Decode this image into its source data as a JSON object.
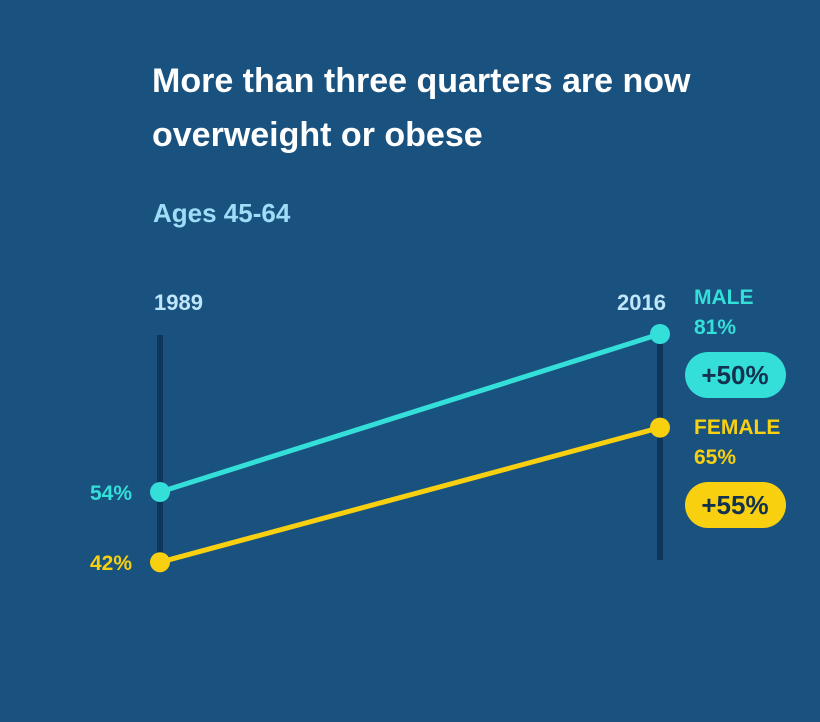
{
  "title_lines": [
    "More than three quarters are now",
    "overweight or obese"
  ],
  "subtitle": "Ages 45-64",
  "colors": {
    "background": "#1a527f",
    "male": "#34dfd9",
    "female": "#f8d00f",
    "axis": "#0d3658",
    "subtitle": "#9fdcf8",
    "badge_text": "#12324f"
  },
  "chart_data": {
    "type": "line",
    "x": [
      "1989",
      "2016"
    ],
    "ylim": [
      0,
      100
    ],
    "grid": false,
    "series": [
      {
        "name": "MALE",
        "values": [
          54,
          81
        ],
        "value_labels": [
          "54%",
          "81%"
        ],
        "change_label": "+50%",
        "color": "#34dfd9"
      },
      {
        "name": "FEMALE",
        "values": [
          42,
          65
        ],
        "value_labels": [
          "42%",
          "65%"
        ],
        "change_label": "+55%",
        "color": "#f8d00f"
      }
    ]
  }
}
